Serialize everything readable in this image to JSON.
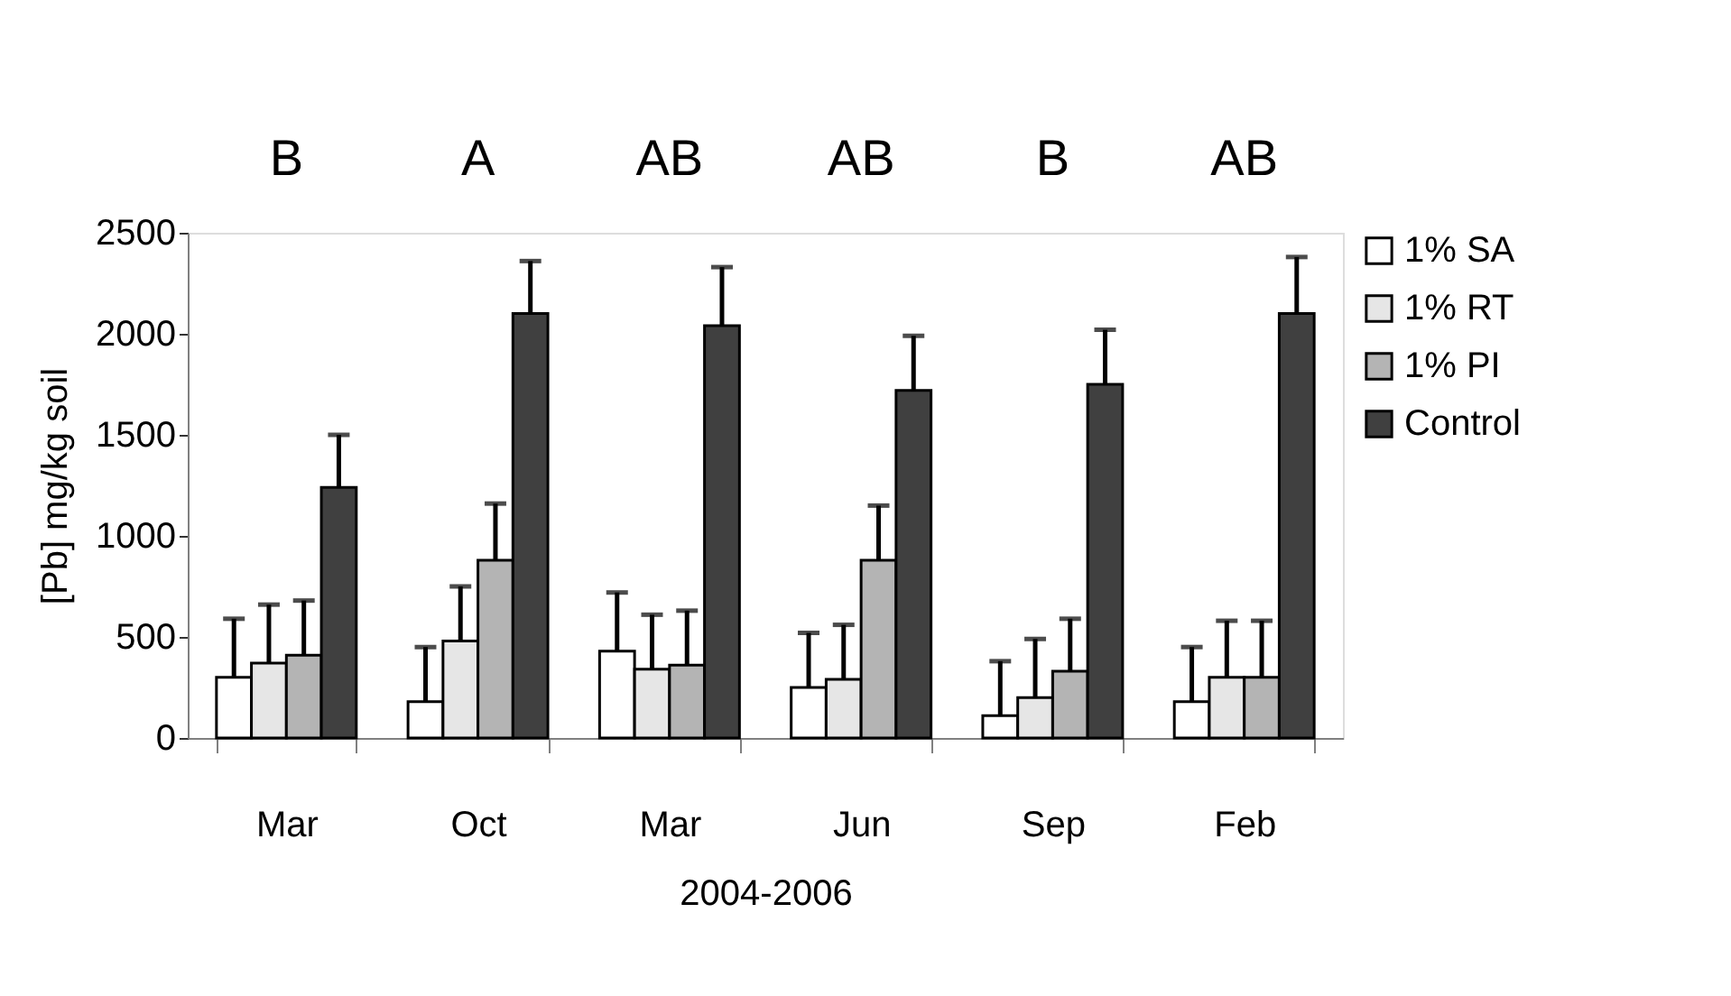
{
  "chart_data": {
    "type": "bar",
    "categories": [
      "Mar",
      "Oct",
      "Mar",
      "Jun",
      "Sep",
      "Feb"
    ],
    "xlabel": "2004-2006",
    "ylabel": "[Pb] mg/kg soil",
    "ylim": [
      0,
      2500
    ],
    "yticks": [
      0,
      500,
      1000,
      1500,
      2000,
      2500
    ],
    "grid": false,
    "legend": "top right",
    "series": [
      {
        "name": "1% SA",
        "color": "#ffffff",
        "values": [
          300,
          180,
          430,
          250,
          110,
          180
        ],
        "errors": [
          [
            300,
            590
          ],
          [
            180,
            450
          ],
          [
            430,
            720
          ],
          [
            250,
            520
          ],
          [
            110,
            380
          ],
          [
            180,
            450
          ]
        ]
      },
      {
        "name": "1% RT",
        "color": "#e6e6e6",
        "values": [
          370,
          480,
          340,
          290,
          200,
          300
        ],
        "errors": [
          [
            370,
            660
          ],
          [
            480,
            750
          ],
          [
            340,
            610
          ],
          [
            290,
            560
          ],
          [
            200,
            490
          ],
          [
            300,
            580
          ]
        ]
      },
      {
        "name": "1% PI",
        "color": "#b4b4b4",
        "values": [
          410,
          880,
          360,
          880,
          330,
          300
        ],
        "errors": [
          [
            410,
            680
          ],
          [
            880,
            1160
          ],
          [
            360,
            630
          ],
          [
            880,
            1150
          ],
          [
            330,
            590
          ],
          [
            300,
            580
          ]
        ]
      },
      {
        "name": "Control",
        "color": "#404040",
        "values": [
          1240,
          2100,
          2040,
          1720,
          1750,
          2100
        ],
        "errors": [
          [
            1240,
            1500
          ],
          [
            2100,
            2360
          ],
          [
            2040,
            2330
          ],
          [
            1720,
            1990
          ],
          [
            1750,
            2020
          ],
          [
            2100,
            2380
          ]
        ]
      }
    ],
    "annotations": [
      "B",
      "A",
      "AB",
      "AB",
      "B",
      "AB"
    ]
  }
}
